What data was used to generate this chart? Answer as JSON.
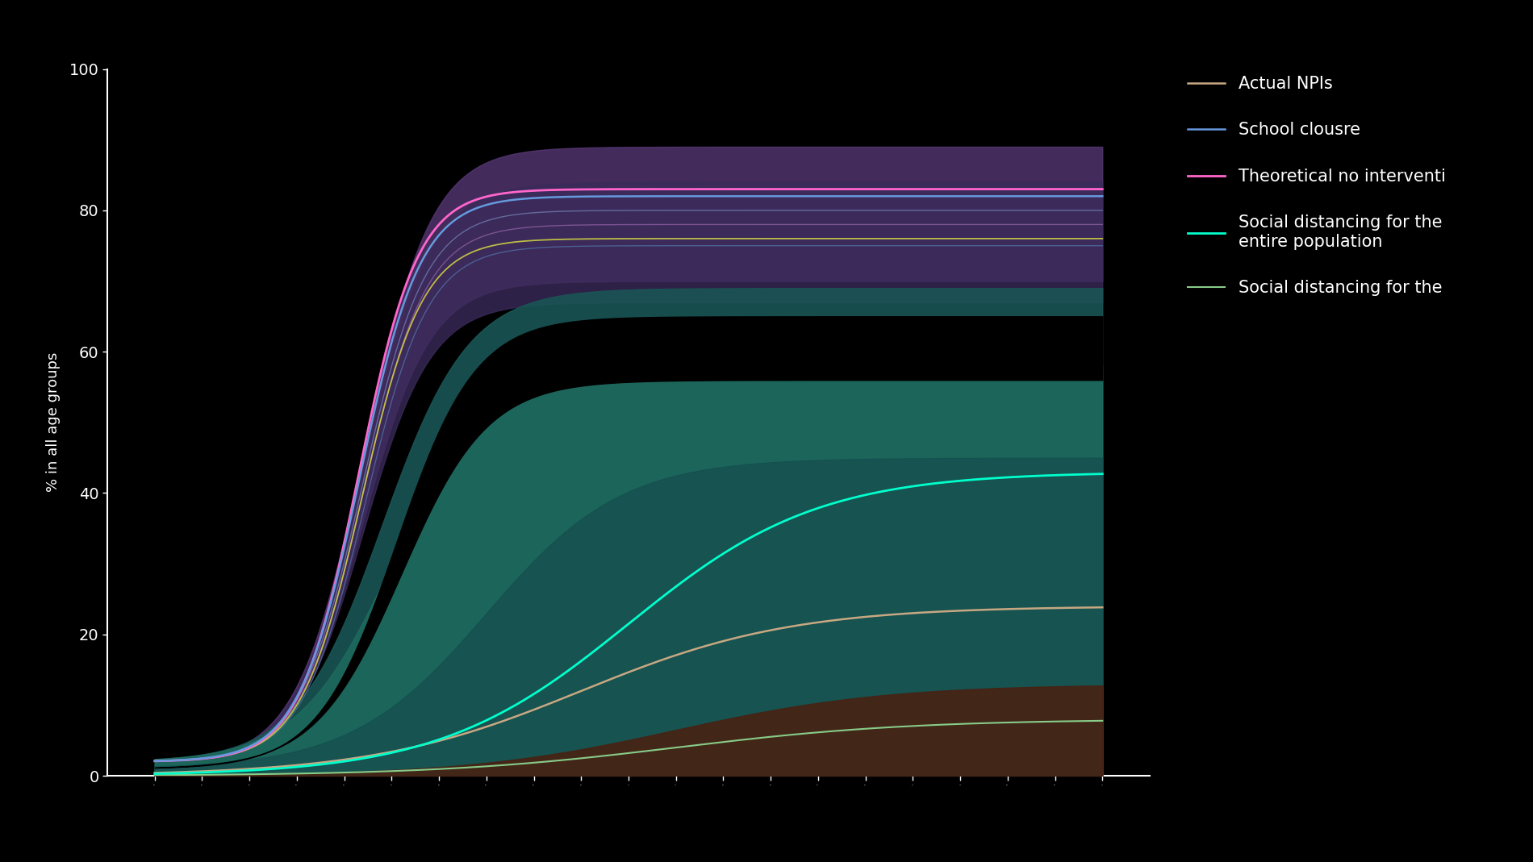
{
  "background_color": "#000000",
  "plot_bg_color": "#000000",
  "axis_color": "#ffffff",
  "tick_color": "#ffffff",
  "text_color": "#ffffff",
  "ylabel": "% in all age groups",
  "ylim": [
    0,
    100
  ],
  "yticks": [
    0,
    20,
    40,
    60,
    80,
    100
  ],
  "n_points": 400,
  "legend_entries": [
    {
      "label": "Actual NPIs",
      "color": "#c8a882",
      "lw": 1.8
    },
    {
      "label": "School clousre",
      "color": "#6699dd",
      "lw": 1.8
    },
    {
      "label": "Theoretical no interventi",
      "color": "#ff66cc",
      "lw": 2.0
    },
    {
      "label": "Social distancing for the\nentire population",
      "color": "#00ffcc",
      "lw": 2.0
    },
    {
      "label": "Social distancing for the",
      "color": "#88cc88",
      "lw": 1.5
    }
  ]
}
